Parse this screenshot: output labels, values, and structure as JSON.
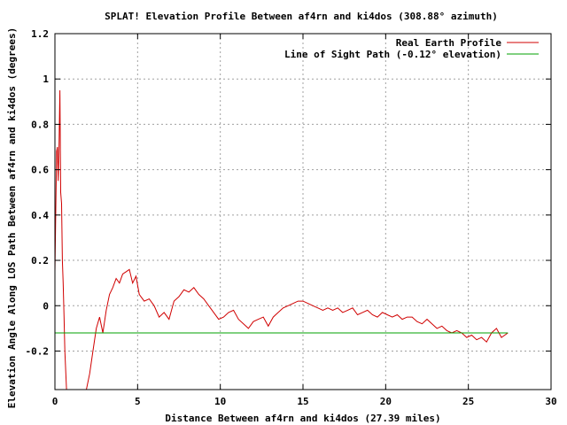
{
  "chart_data": {
    "type": "line",
    "title": "SPLAT! Elevation Profile Between af4rn and ki4dos (308.88° azimuth)",
    "xlabel": "Distance Between af4rn and ki4dos (27.39 miles)",
    "ylabel": "Elevation Angle Along LOS Path Between af4rn and ki4dos (degrees)",
    "xlim": [
      0,
      30
    ],
    "ylim": [
      -0.37,
      1.2
    ],
    "x_ticks": [
      0,
      5,
      10,
      15,
      20,
      25,
      30
    ],
    "y_ticks": [
      -0.2,
      0,
      0.2,
      0.4,
      0.6,
      0.8,
      1,
      1.2
    ],
    "x_tick_labels": [
      "0",
      "5",
      "10",
      "15",
      "20",
      "25",
      "30"
    ],
    "y_tick_labels": [
      "-0.2",
      "0",
      "0.2",
      "0.4",
      "0.6",
      "0.8",
      "1",
      "1.2"
    ],
    "grid": true,
    "legend_position": "top-right",
    "series": [
      {
        "name": "Real Earth Profile",
        "color": "#d00000",
        "x": [
          0.0,
          0.1,
          0.15,
          0.2,
          0.25,
          0.3,
          0.35,
          0.4,
          0.45,
          0.5,
          0.55,
          0.6,
          0.7,
          0.8,
          0.9,
          1.0,
          1.1,
          1.3,
          1.5,
          1.7,
          1.9,
          2.1,
          2.3,
          2.5,
          2.7,
          2.9,
          3.1,
          3.3,
          3.5,
          3.7,
          3.9,
          4.1,
          4.3,
          4.5,
          4.7,
          4.9,
          5.1,
          5.4,
          5.7,
          6.0,
          6.3,
          6.6,
          6.9,
          7.2,
          7.5,
          7.8,
          8.1,
          8.4,
          8.7,
          9.0,
          9.3,
          9.6,
          9.9,
          10.2,
          10.5,
          10.8,
          11.1,
          11.4,
          11.7,
          12.0,
          12.3,
          12.6,
          12.9,
          13.2,
          13.5,
          13.8,
          14.1,
          14.4,
          14.7,
          15.0,
          15.3,
          15.6,
          15.9,
          16.2,
          16.5,
          16.8,
          17.1,
          17.4,
          17.7,
          18.0,
          18.3,
          18.6,
          18.9,
          19.2,
          19.5,
          19.8,
          20.1,
          20.4,
          20.7,
          21.0,
          21.3,
          21.6,
          21.9,
          22.2,
          22.5,
          22.8,
          23.1,
          23.4,
          23.7,
          24.0,
          24.3,
          24.6,
          24.9,
          25.2,
          25.5,
          25.8,
          26.1,
          26.4,
          26.7,
          27.0,
          27.39
        ],
        "y": [
          0.15,
          0.68,
          0.7,
          0.55,
          0.72,
          0.95,
          0.5,
          0.45,
          0.2,
          0.1,
          -0.05,
          -0.2,
          -0.37,
          -0.37,
          -0.37,
          -0.37,
          -0.37,
          -0.37,
          -0.37,
          -0.37,
          -0.37,
          -0.3,
          -0.2,
          -0.1,
          -0.05,
          -0.12,
          -0.02,
          0.05,
          0.08,
          0.12,
          0.1,
          0.14,
          0.15,
          0.16,
          0.1,
          0.13,
          0.05,
          0.02,
          0.03,
          0.0,
          -0.05,
          -0.03,
          -0.06,
          0.02,
          0.04,
          0.07,
          0.06,
          0.08,
          0.05,
          0.03,
          0.0,
          -0.03,
          -0.06,
          -0.05,
          -0.03,
          -0.02,
          -0.06,
          -0.08,
          -0.1,
          -0.07,
          -0.06,
          -0.05,
          -0.09,
          -0.05,
          -0.03,
          -0.01,
          0.0,
          0.01,
          0.02,
          0.02,
          0.01,
          0.0,
          -0.01,
          -0.02,
          -0.01,
          -0.02,
          -0.01,
          -0.03,
          -0.02,
          -0.01,
          -0.04,
          -0.03,
          -0.02,
          -0.04,
          -0.05,
          -0.03,
          -0.04,
          -0.05,
          -0.04,
          -0.06,
          -0.05,
          -0.05,
          -0.07,
          -0.08,
          -0.06,
          -0.08,
          -0.1,
          -0.09,
          -0.11,
          -0.12,
          -0.11,
          -0.12,
          -0.14,
          -0.13,
          -0.15,
          -0.14,
          -0.16,
          -0.12,
          -0.1,
          -0.14,
          -0.12
        ]
      },
      {
        "name": "Line of Sight Path (-0.12° elevation)",
        "color": "#00a000",
        "x": [
          0,
          27.39
        ],
        "y": [
          -0.12,
          -0.12
        ]
      }
    ]
  }
}
